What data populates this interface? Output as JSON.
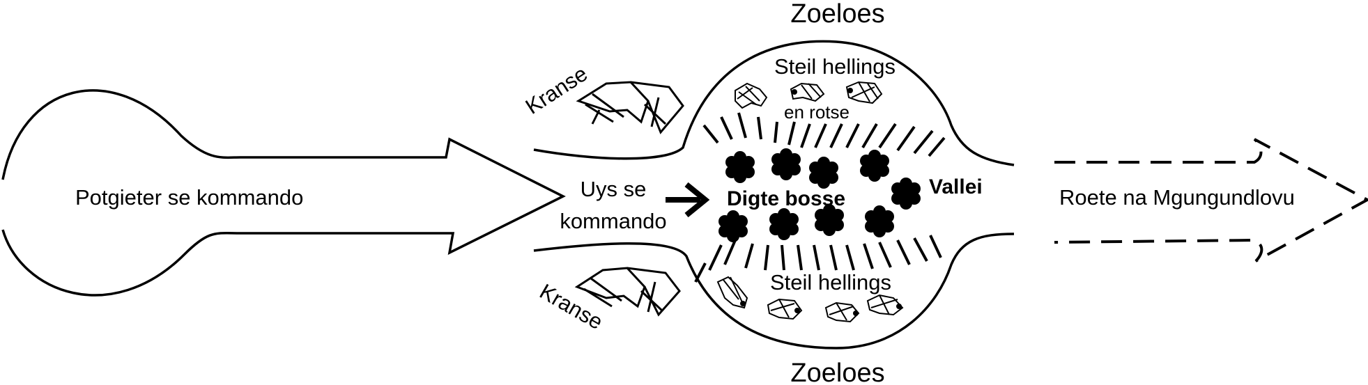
{
  "diagram": {
    "labels": {
      "zulus_top": "Zoeloes",
      "zulus_bottom": "Zoeloes",
      "potgieter": "Potgieter se kommando",
      "uys_line1": "Uys se",
      "uys_line2": "kommando",
      "cliffs_top": "Kranse",
      "cliffs_bottom": "Kranse",
      "steep_top": "Steil hellings",
      "rocks": "en rotse",
      "steep_bottom": "Steil hellings",
      "dense_bush": "Digte bosse",
      "valley": "Vallei",
      "route": "Roete na Mgungundlovu"
    },
    "colors": {
      "ink": "#000000",
      "background": "#ffffff"
    },
    "icons": {
      "bush": "bush-icon",
      "rock": "rock-icon",
      "cliff": "cliff-icon",
      "arrow": "arrow-right-icon"
    }
  }
}
